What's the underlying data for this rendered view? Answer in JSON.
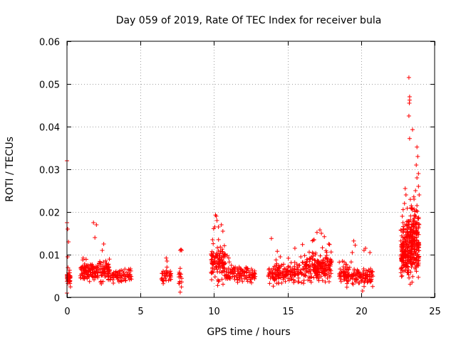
{
  "chart_data": {
    "type": "scatter",
    "title": "Day 059 of 2019, Rate Of TEC Index for receiver bula",
    "xlabel": "GPS time / hours",
    "ylabel": "ROTI / TECUs",
    "xlim": [
      0,
      25
    ],
    "ylim": [
      0,
      0.06
    ],
    "x_ticks": [
      0,
      5,
      10,
      15,
      20,
      25
    ],
    "x_tick_labels": [
      "0",
      "5",
      "10",
      "15",
      "20",
      "25"
    ],
    "y_ticks": [
      0,
      0.01,
      0.02,
      0.03,
      0.04,
      0.05,
      0.06
    ],
    "y_tick_labels": [
      "0",
      "0.01",
      "0.02",
      "0.03",
      "0.04",
      "0.05",
      "0.06"
    ],
    "grid": true,
    "marker": "+",
    "color": "#ff0000",
    "series": [
      {
        "name": "ROTI",
        "clusters": [
          {
            "x_range": [
              0.0,
              0.25
            ],
            "y_center": 0.0045,
            "y_spread": 0.0012,
            "n": 40
          },
          {
            "x_range": [
              0.9,
              2.9
            ],
            "y_center": 0.006,
            "y_spread": 0.0016,
            "n": 170
          },
          {
            "x_range": [
              2.9,
              4.4
            ],
            "y_center": 0.005,
            "y_spread": 0.0011,
            "n": 80
          },
          {
            "x_range": [
              6.4,
              7.1
            ],
            "y_center": 0.005,
            "y_spread": 0.0012,
            "n": 35
          },
          {
            "x_range": [
              7.6,
              7.8
            ],
            "y_center": 0.004,
            "y_spread": 0.0013,
            "n": 14
          },
          {
            "x_range": [
              9.8,
              10.8
            ],
            "y_center": 0.008,
            "y_spread": 0.0028,
            "n": 120
          },
          {
            "x_range": [
              10.8,
              12.8
            ],
            "y_center": 0.0055,
            "y_spread": 0.0012,
            "n": 120
          },
          {
            "x_range": [
              13.7,
              16.0
            ],
            "y_center": 0.0055,
            "y_spread": 0.0016,
            "n": 160
          },
          {
            "x_range": [
              16.0,
              18.0
            ],
            "y_center": 0.007,
            "y_spread": 0.0025,
            "n": 210
          },
          {
            "x_range": [
              18.5,
              20.8
            ],
            "y_center": 0.005,
            "y_spread": 0.0013,
            "n": 150
          },
          {
            "x_range": [
              22.7,
              23.1
            ],
            "y_center": 0.01,
            "y_spread": 0.0035,
            "n": 110
          },
          {
            "x_range": [
              23.1,
              23.95
            ],
            "y_center": 0.012,
            "y_spread": 0.005,
            "n": 260
          }
        ],
        "points": [
          [
            0.0,
            0.032
          ],
          [
            0.0,
            0.0175
          ],
          [
            0.05,
            0.016
          ],
          [
            0.1,
            0.013
          ],
          [
            0.0,
            0.001
          ],
          [
            0.05,
            0.0095
          ],
          [
            1.8,
            0.0175
          ],
          [
            2.0,
            0.017
          ],
          [
            1.9,
            0.014
          ],
          [
            1.1,
            0.0092
          ],
          [
            2.5,
            0.0125
          ],
          [
            2.4,
            0.011
          ],
          [
            7.7,
            0.011
          ],
          [
            7.75,
            0.0112
          ],
          [
            7.8,
            0.011
          ],
          [
            7.7,
            0.0068
          ],
          [
            7.7,
            0.0012
          ],
          [
            6.75,
            0.0092
          ],
          [
            6.8,
            0.0085
          ],
          [
            10.1,
            0.0193
          ],
          [
            10.15,
            0.019
          ],
          [
            10.2,
            0.018
          ],
          [
            10.05,
            0.0165
          ],
          [
            10.3,
            0.0165
          ],
          [
            10.5,
            0.017
          ],
          [
            10.6,
            0.0155
          ],
          [
            9.9,
            0.0135
          ],
          [
            10.9,
            0.0098
          ],
          [
            11.0,
            0.0092
          ],
          [
            13.9,
            0.0138
          ],
          [
            14.3,
            0.0108
          ],
          [
            14.5,
            0.0095
          ],
          [
            15.5,
            0.0115
          ],
          [
            15.9,
            0.0095
          ],
          [
            17.0,
            0.0152
          ],
          [
            17.2,
            0.0158
          ],
          [
            17.3,
            0.015
          ],
          [
            17.5,
            0.0142
          ],
          [
            16.8,
            0.0135
          ],
          [
            17.8,
            0.0125
          ],
          [
            19.5,
            0.0132
          ],
          [
            19.6,
            0.0122
          ],
          [
            19.4,
            0.0105
          ],
          [
            20.2,
            0.011
          ],
          [
            20.3,
            0.0115
          ],
          [
            20.6,
            0.0105
          ],
          [
            20.7,
            0.0042
          ],
          [
            20.1,
            0.0015
          ],
          [
            22.8,
            0.019
          ],
          [
            22.85,
            0.0175
          ],
          [
            22.9,
            0.016
          ],
          [
            23.0,
            0.0255
          ],
          [
            23.05,
            0.024
          ],
          [
            22.95,
            0.022
          ],
          [
            23.25,
            0.0515
          ],
          [
            23.3,
            0.047
          ],
          [
            23.3,
            0.0462
          ],
          [
            23.28,
            0.0455
          ],
          [
            23.25,
            0.0425
          ],
          [
            23.5,
            0.0393
          ],
          [
            23.3,
            0.0372
          ],
          [
            23.8,
            0.0352
          ],
          [
            23.85,
            0.033
          ],
          [
            23.75,
            0.031
          ],
          [
            23.9,
            0.029
          ],
          [
            23.8,
            0.028
          ],
          [
            23.9,
            0.026
          ],
          [
            23.7,
            0.025
          ],
          [
            23.95,
            0.024
          ],
          [
            23.6,
            0.023
          ],
          [
            23.8,
            0.0215
          ],
          [
            23.5,
            0.0205
          ],
          [
            23.7,
            0.019
          ],
          [
            23.4,
            0.021
          ],
          [
            23.6,
            0.0185
          ]
        ]
      }
    ]
  }
}
